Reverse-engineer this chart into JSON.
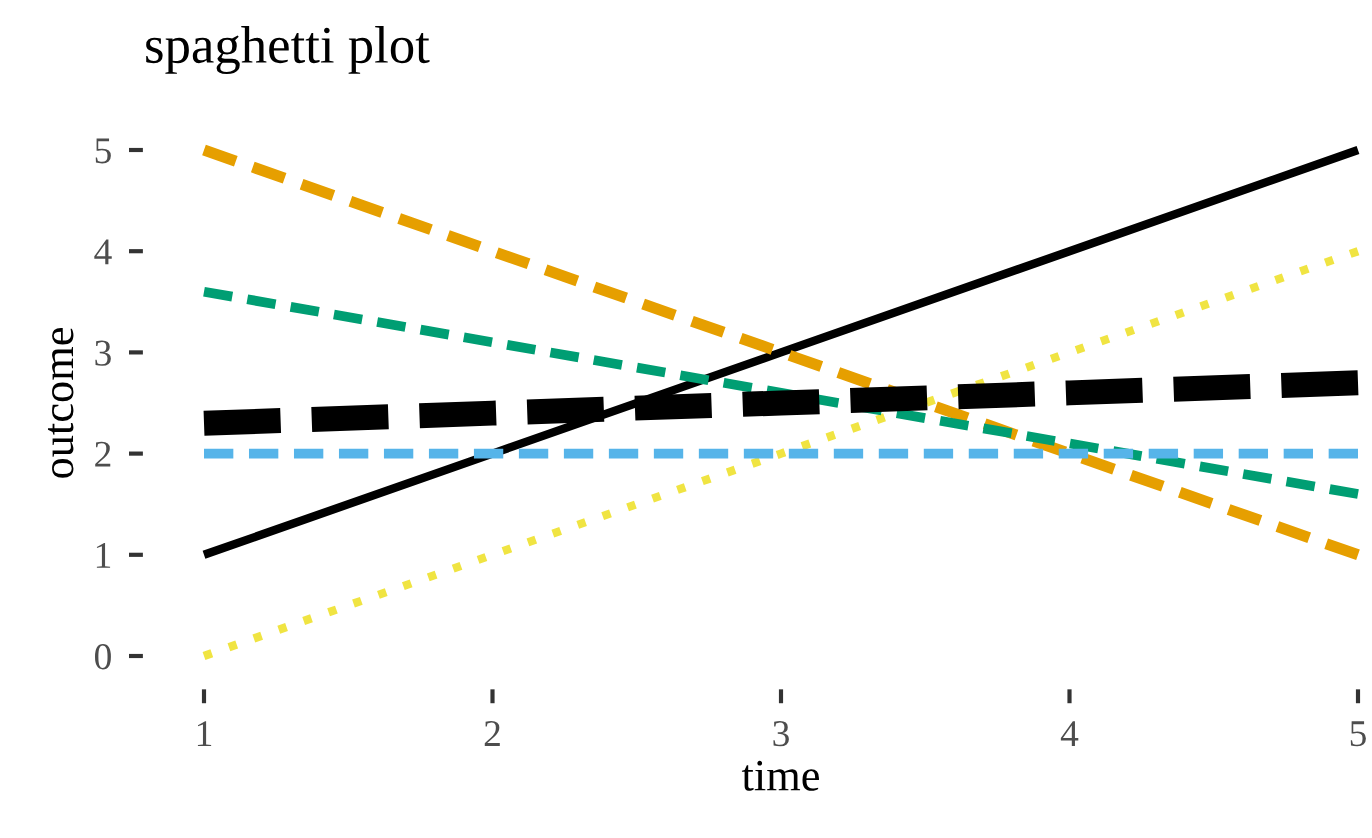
{
  "chart_data": {
    "type": "line",
    "title": "spaghetti plot",
    "xlabel": "time",
    "ylabel": "outcome",
    "x": [
      1,
      2,
      3,
      4,
      5
    ],
    "series": [
      {
        "color": "#000000",
        "values": [
          1,
          2,
          3,
          4,
          5
        ],
        "line_style": "solid"
      },
      {
        "color": "#e69f00",
        "values": [
          5,
          4,
          3,
          2,
          1
        ],
        "line_style": "dashed"
      },
      {
        "color": "#f0e442",
        "values": [
          0,
          1,
          2,
          3,
          4
        ],
        "line_style": "dotted"
      },
      {
        "color": "#009e73",
        "values": [
          3.6,
          3.1,
          2.6,
          2.1,
          1.6
        ],
        "line_style": "dashed"
      },
      {
        "color": "#56b4e9",
        "values": [
          2,
          2,
          2,
          2,
          2
        ],
        "line_style": "dashed"
      },
      {
        "color": "#000000",
        "values": [
          2.3,
          2.4,
          2.5,
          2.6,
          2.7
        ],
        "line_style": "dashed"
      }
    ],
    "xlim": [
      1,
      5
    ],
    "ylim": [
      0,
      5
    ],
    "xticks": [
      1,
      2,
      3,
      4,
      5
    ],
    "yticks": [
      0,
      1,
      2,
      3,
      4,
      5
    ],
    "grid": false,
    "marker": "none"
  }
}
